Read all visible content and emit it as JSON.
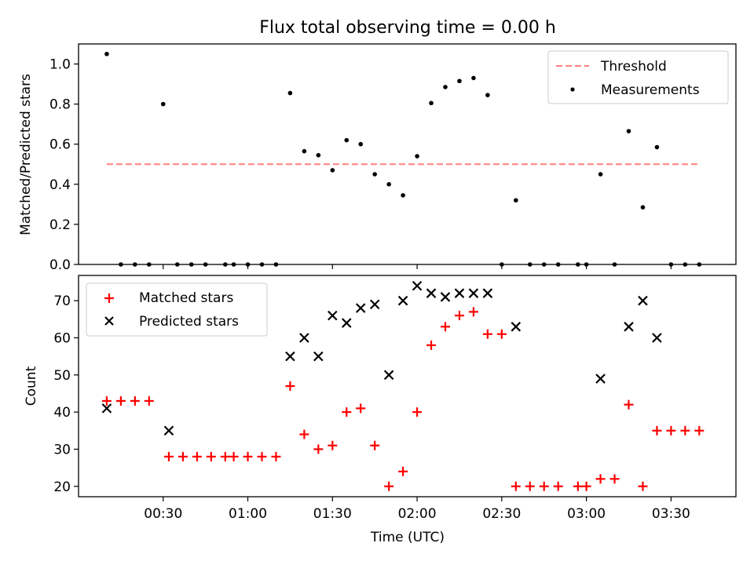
{
  "title": "Flux total observing time = 0.00 h",
  "chart_data": [
    {
      "type": "scatter",
      "ylabel": "Matched/Predicted stars",
      "xlabel": "",
      "ylim": [
        0,
        1.1
      ],
      "yticks": [
        "0.0",
        "0.2",
        "0.4",
        "0.6",
        "0.8",
        "1.0"
      ],
      "ytick_values": [
        0,
        0.2,
        0.4,
        0.6,
        0.8,
        1.0
      ],
      "legend_position": "top-right",
      "grid": false,
      "series": [
        {
          "name": "Threshold",
          "kind": "dashed-line",
          "color": "#ff7f7f",
          "x": [
            "00:10",
            "03:40"
          ],
          "y": [
            0.5,
            0.5
          ]
        },
        {
          "name": "Measurements",
          "kind": "dot",
          "color": "#000000",
          "x": [
            "00:10",
            "00:15",
            "00:20",
            "00:25",
            "00:30",
            "00:35",
            "00:40",
            "00:45",
            "00:52",
            "00:55",
            "01:00",
            "01:05",
            "01:10",
            "01:15",
            "01:20",
            "01:25",
            "01:30",
            "01:35",
            "01:40",
            "01:45",
            "01:50",
            "01:55",
            "02:00",
            "02:05",
            "02:10",
            "02:15",
            "02:20",
            "02:25",
            "02:30",
            "02:35",
            "02:40",
            "02:45",
            "02:50",
            "02:57",
            "03:00",
            "03:05",
            "03:10",
            "03:15",
            "03:20",
            "03:25",
            "03:30",
            "03:35",
            "03:40"
          ],
          "y": [
            1.05,
            0,
            0,
            0,
            0.8,
            0,
            0,
            0,
            0,
            0,
            0,
            0,
            0,
            0.855,
            0.565,
            0.545,
            0.47,
            0.62,
            0.6,
            0.45,
            0.4,
            0.345,
            0.54,
            0.805,
            0.885,
            0.915,
            0.93,
            0.845,
            0,
            0.32,
            0,
            0,
            0,
            0,
            0,
            0.45,
            0,
            0.665,
            0.285,
            0.585,
            0,
            0,
            0
          ]
        }
      ]
    },
    {
      "type": "scatter",
      "ylabel": "Count",
      "xlabel": "Time (UTC)",
      "ylim": [
        17.2,
        76.8
      ],
      "yticks": [
        "20",
        "30",
        "40",
        "50",
        "60",
        "70"
      ],
      "ytick_values": [
        20,
        30,
        40,
        50,
        60,
        70
      ],
      "xticks": [
        "00:30",
        "01:00",
        "01:30",
        "02:00",
        "02:30",
        "03:00",
        "03:30"
      ],
      "xtick_values": [
        "00:30",
        "01:00",
        "01:30",
        "02:00",
        "02:30",
        "03:00",
        "03:30"
      ],
      "xlim": [
        "00:00",
        "03:53"
      ],
      "legend_position": "top-left",
      "grid": false,
      "series": [
        {
          "name": "Matched stars",
          "marker": "plus",
          "color": "#ff0000",
          "x": [
            "00:10",
            "00:15",
            "00:20",
            "00:25",
            "00:32",
            "00:37",
            "00:42",
            "00:47",
            "00:52",
            "00:55",
            "01:00",
            "01:05",
            "01:10",
            "01:15",
            "01:20",
            "01:25",
            "01:30",
            "01:35",
            "01:40",
            "01:45",
            "01:50",
            "01:55",
            "02:00",
            "02:05",
            "02:10",
            "02:15",
            "02:20",
            "02:25",
            "02:30",
            "02:35",
            "02:40",
            "02:45",
            "02:50",
            "02:57",
            "03:00",
            "03:05",
            "03:10",
            "03:15",
            "03:20",
            "03:25",
            "03:30",
            "03:35",
            "03:40"
          ],
          "y": [
            43,
            43,
            43,
            43,
            28,
            28,
            28,
            28,
            28,
            28,
            28,
            28,
            28,
            47,
            34,
            30,
            31,
            40,
            41,
            31,
            20,
            24,
            40,
            58,
            63,
            66,
            67,
            61,
            61,
            20,
            20,
            20,
            20,
            20,
            20,
            22,
            22,
            42,
            20,
            35,
            35,
            35,
            35
          ]
        },
        {
          "name": "Predicted stars",
          "marker": "x",
          "color": "#000000",
          "x": [
            "00:10",
            "00:32",
            "01:15",
            "01:20",
            "01:25",
            "01:30",
            "01:35",
            "01:40",
            "01:45",
            "01:50",
            "01:55",
            "02:00",
            "02:05",
            "02:10",
            "02:15",
            "02:20",
            "02:25",
            "02:35",
            "03:05",
            "03:15",
            "03:20",
            "03:25"
          ],
          "y": [
            41,
            35,
            55,
            60,
            55,
            66,
            64,
            68,
            69,
            50,
            70,
            74,
            72,
            71,
            72,
            72,
            72,
            63,
            49,
            63,
            70,
            60
          ]
        }
      ]
    }
  ]
}
